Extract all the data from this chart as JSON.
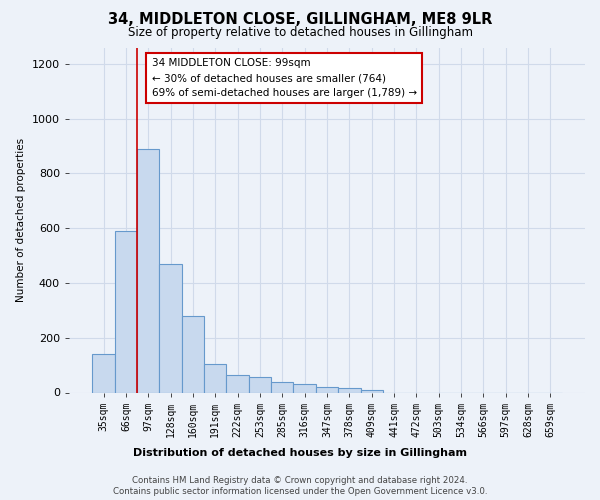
{
  "title": "34, MIDDLETON CLOSE, GILLINGHAM, ME8 9LR",
  "subtitle": "Size of property relative to detached houses in Gillingham",
  "xlabel": "Distribution of detached houses by size in Gillingham",
  "ylabel": "Number of detached properties",
  "bar_color": "#c8d9ee",
  "bar_edge_color": "#6699cc",
  "categories": [
    "35sqm",
    "66sqm",
    "97sqm",
    "128sqm",
    "160sqm",
    "191sqm",
    "222sqm",
    "253sqm",
    "285sqm",
    "316sqm",
    "347sqm",
    "378sqm",
    "409sqm",
    "441sqm",
    "472sqm",
    "503sqm",
    "534sqm",
    "566sqm",
    "597sqm",
    "628sqm",
    "659sqm"
  ],
  "values": [
    140,
    590,
    890,
    470,
    280,
    105,
    65,
    55,
    40,
    30,
    20,
    15,
    10,
    0,
    0,
    0,
    0,
    0,
    0,
    0,
    0
  ],
  "ylim": [
    0,
    1260
  ],
  "yticks": [
    0,
    200,
    400,
    600,
    800,
    1000,
    1200
  ],
  "annotation_text": "34 MIDDLETON CLOSE: 99sqm\n← 30% of detached houses are smaller (764)\n69% of semi-detached houses are larger (1,789) →",
  "vline_x": 2.0,
  "annotation_box_color": "#ffffff",
  "annotation_box_edge_color": "#cc0000",
  "footer_line1": "Contains HM Land Registry data © Crown copyright and database right 2024.",
  "footer_line2": "Contains public sector information licensed under the Open Government Licence v3.0.",
  "background_color": "#edf2f9",
  "grid_color": "#d0daea",
  "title_fontsize": 10.5,
  "subtitle_fontsize": 8.5
}
